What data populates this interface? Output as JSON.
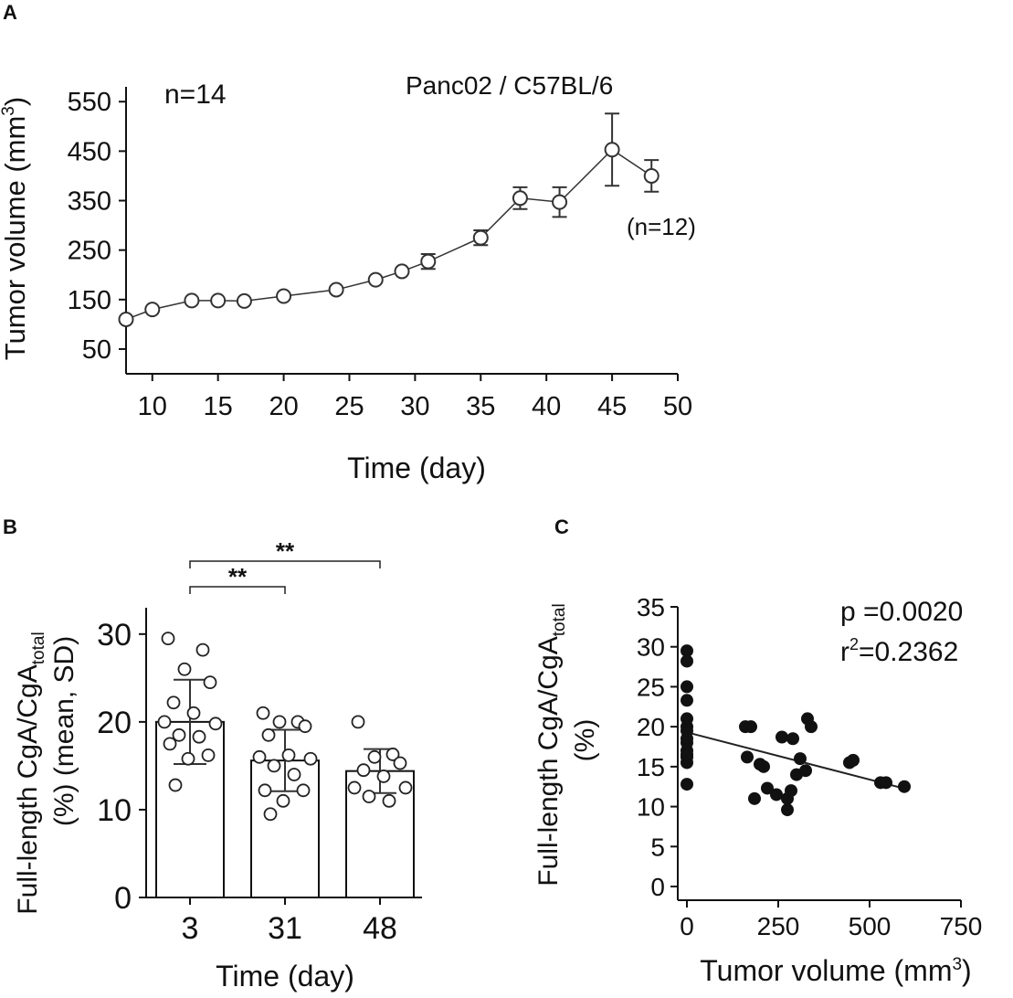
{
  "chart_data": [
    {
      "panel": "A",
      "type": "line",
      "title": "Panc02 / C57BL/6",
      "annotations": [
        "n=14",
        "(n=12)"
      ],
      "xlabel": "Time (day)",
      "ylabel_main": "Tumor volume (mm",
      "ylabel_sup": "3",
      "ylabel_tail": ")",
      "xlim": [
        8,
        50
      ],
      "ylim": [
        0,
        580
      ],
      "xticks": [
        10,
        15,
        20,
        25,
        30,
        35,
        40,
        45,
        50
      ],
      "yticks": [
        50,
        150,
        250,
        350,
        450,
        550
      ],
      "series": [
        {
          "name": "Tumor volume",
          "x": [
            8,
            10,
            13,
            15,
            17,
            20,
            24,
            27,
            29,
            31,
            35,
            38,
            41,
            45,
            48
          ],
          "y": [
            110,
            130,
            148,
            148,
            147,
            157,
            170,
            190,
            207,
            227,
            275,
            355,
            347,
            453,
            400
          ],
          "err": [
            0,
            0,
            0,
            0,
            0,
            0,
            0,
            0,
            0,
            15,
            15,
            22,
            30,
            73,
            32
          ]
        }
      ]
    },
    {
      "panel": "B",
      "type": "bar",
      "xlabel": "Time (day)",
      "ylabel_line1_main": "Full-length CgA/CgA",
      "ylabel_line1_sub": "total",
      "ylabel_line2": "(%) (mean, SD)",
      "ylim": [
        0,
        33
      ],
      "yticks": [
        0,
        10,
        20,
        30
      ],
      "categories": [
        "3",
        "31",
        "48"
      ],
      "values": [
        20.0,
        15.6,
        14.4
      ],
      "sd": [
        4.8,
        3.5,
        2.5
      ],
      "points": [
        [
          29.5,
          28.2,
          26.0,
          24.5,
          22.2,
          21.0,
          20.0,
          19.8,
          18.5,
          18.3,
          17.5,
          16.2,
          15.8,
          12.8
        ],
        [
          21.0,
          20.0,
          20.0,
          19.5,
          18.5,
          16.2,
          16.0,
          15.8,
          15.0,
          14.0,
          12.2,
          12.2,
          11.0,
          9.5
        ],
        [
          20.0,
          16.3,
          16.0,
          15.3,
          14.5,
          13.8,
          12.5,
          12.5,
          11.5,
          11.0
        ]
      ],
      "significance": [
        {
          "from": 0,
          "to": 1,
          "label": "**"
        },
        {
          "from": 0,
          "to": 2,
          "label": "**"
        }
      ]
    },
    {
      "panel": "C",
      "type": "scatter",
      "xlabel_main": "Tumor volume (mm",
      "xlabel_sup": "3",
      "xlabel_tail": ")",
      "ylabel_line1_main": "Full-length CgA/CgA",
      "ylabel_line1_sub": "total",
      "ylabel_line2": "(%)",
      "xlim": [
        0,
        750
      ],
      "ylim": [
        0,
        35
      ],
      "xticks": [
        0,
        250,
        500,
        750
      ],
      "yticks": [
        0,
        5,
        10,
        15,
        20,
        25,
        30,
        35
      ],
      "stat_p": "p =0.0020",
      "stat_r_main": "r",
      "stat_r_sup": "2",
      "stat_r_val": "=0.2362",
      "fit": {
        "x0": 0,
        "y0": 19.3,
        "x1": 600,
        "y1": 12.2
      },
      "x": [
        0,
        0,
        0,
        0,
        0,
        0,
        0,
        0,
        0,
        0,
        0,
        0,
        0,
        0,
        160,
        175,
        165,
        185,
        210,
        220,
        200,
        245,
        260,
        275,
        285,
        290,
        275,
        300,
        310,
        325,
        330,
        340,
        445,
        455,
        530,
        545,
        595
      ],
      "y": [
        29.5,
        28.2,
        25.0,
        23.3,
        21.0,
        20.0,
        19.5,
        18.5,
        18.0,
        17.0,
        16.5,
        16.2,
        15.5,
        12.8,
        20.0,
        20.0,
        16.2,
        11.0,
        15.0,
        12.3,
        15.3,
        11.5,
        18.7,
        11.0,
        12.0,
        18.5,
        9.6,
        14.0,
        16.0,
        14.5,
        21.0,
        20.0,
        15.5,
        15.8,
        13.0,
        13.0,
        12.5
      ]
    }
  ],
  "panels": {
    "a_letter": "A",
    "b_letter": "B",
    "c_letter": "C"
  }
}
